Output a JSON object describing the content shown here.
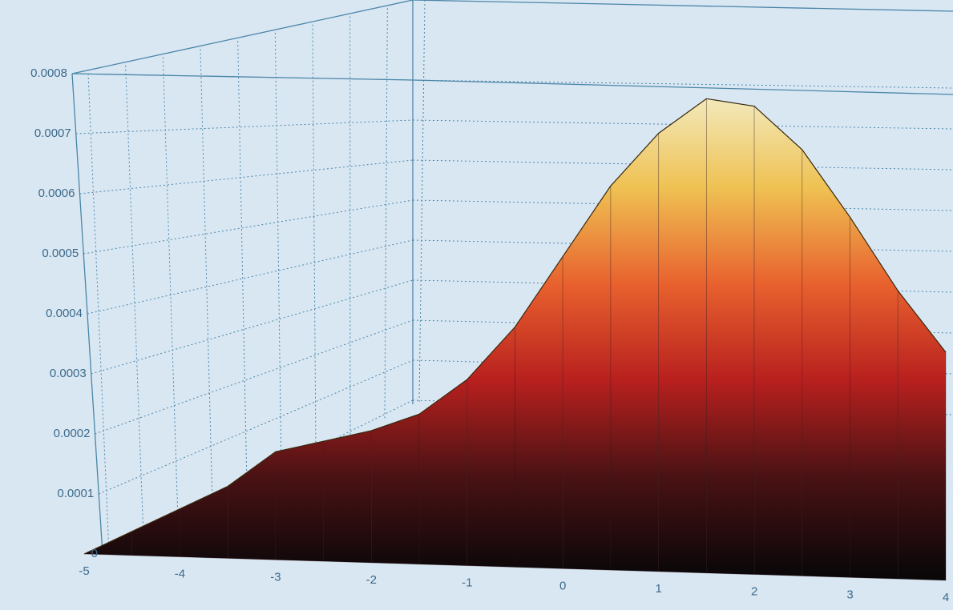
{
  "chart_data": {
    "type": "surface",
    "x": [
      -5,
      -4.5,
      -4,
      -3.5,
      -3,
      -2.5,
      -2,
      -1.5,
      -1,
      -0.5,
      0,
      0.5,
      1,
      1.5,
      2,
      2.5,
      3,
      3.5,
      4
    ],
    "values": [
      0,
      4e-05,
      8e-05,
      0.00012,
      0.00018,
      0.0002,
      0.00022,
      0.00025,
      0.00031,
      0.0004,
      0.00052,
      0.00064,
      0.00073,
      0.00079,
      0.00078,
      0.00071,
      0.0006,
      0.00048,
      0.00038
    ],
    "colormap": [
      "#0b0709",
      "#4a1214",
      "#b8201e",
      "#e8612e",
      "#efc152",
      "#f2ecc2"
    ],
    "xlim": [
      -5,
      4
    ],
    "xticks": [
      -5,
      -4,
      -3,
      -2,
      -1,
      0,
      1,
      2,
      3,
      4
    ],
    "ylim": [
      0,
      0.0008
    ],
    "yticks": [
      0,
      0.0001,
      0.0002,
      0.0003,
      0.0004,
      0.0005,
      0.0006,
      0.0007,
      0.0008
    ],
    "grid": true
  }
}
